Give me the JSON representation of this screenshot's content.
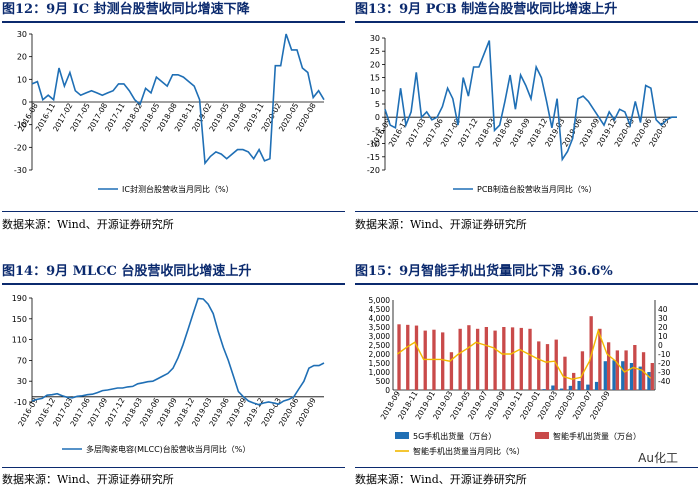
{
  "panels": [
    {
      "fig_title": "图12：9月 IC 封测台股营收同比增速下降",
      "source": "数据来源：Wind、开源证券研究所"
    },
    {
      "fig_title": "图13：9月 PCB 制造台股营收同比增速上升",
      "source": "数据来源：Wind、开源证券研究所"
    },
    {
      "fig_title": "图14：9月 MLCC 台股营收同比增速上升",
      "source": "数据来源：Wind、开源证券研究所"
    },
    {
      "fig_title": "图15：9月智能手机出货量同比下滑 36.6%",
      "source": "数据来源：Wind、开源证券研究所"
    }
  ],
  "watermark": "Au化工",
  "chart_data": [
    {
      "type": "line",
      "color": "#1f6fb5",
      "ylim": [
        -30,
        30
      ],
      "yticks": [
        -30,
        -20,
        -10,
        0,
        10,
        20,
        30
      ],
      "xticks": [
        "2016-08",
        "2016-11",
        "2017-02",
        "2017-05",
        "2017-08",
        "2017-11",
        "2018-02",
        "2018-05",
        "2018-08",
        "2018-11",
        "2019-02",
        "2019-05",
        "2019-08",
        "2019-11",
        "2020-02",
        "2020-05",
        "2020-08"
      ],
      "series": [
        {
          "name": "IC封测台股营收当月同比（%）",
          "values": [
            8,
            9,
            1,
            3,
            1,
            15,
            7,
            13,
            5,
            3,
            4,
            5,
            4,
            3,
            4,
            5,
            8,
            8,
            5,
            1,
            -1,
            6,
            4,
            11,
            9,
            7,
            12,
            12,
            11,
            9,
            7,
            1,
            -27,
            -24,
            -22,
            -23,
            -25,
            -23,
            -21,
            -21,
            -22,
            -25,
            -21,
            -26,
            -25,
            16,
            16,
            30,
            23,
            23,
            15,
            13,
            2,
            5,
            1
          ]
        }
      ]
    },
    {
      "type": "line",
      "color": "#1f6fb5",
      "ylim": [
        -20,
        30
      ],
      "yticks": [
        -20,
        -15,
        -10,
        -5,
        0,
        5,
        10,
        15,
        20,
        25,
        30
      ],
      "xticks": [
        "2016-09",
        "2016-12",
        "2017-03",
        "2017-06",
        "2017-09",
        "2017-12",
        "2018-03",
        "2018-06",
        "2018-09",
        "2018-12",
        "2019-03",
        "2019-06",
        "2019-09",
        "2019-12",
        "2020-03",
        "2020-06",
        "2020-09"
      ],
      "series": [
        {
          "name": "PCB制造台股营收当月同比（%）",
          "values": [
            3,
            -3,
            -4,
            11,
            -3,
            2,
            17,
            0,
            2,
            -1,
            0,
            4,
            11,
            7,
            -3,
            15,
            8,
            19,
            19,
            24,
            29,
            -5,
            -3,
            6,
            16,
            3,
            16,
            12,
            7,
            19,
            15,
            6,
            -4,
            7,
            -16,
            -13,
            -8,
            7,
            8,
            6,
            3,
            0,
            -3,
            2,
            -1,
            3,
            2,
            -3,
            6,
            -2,
            12,
            11,
            -1,
            -3,
            -1,
            0,
            0
          ]
        }
      ]
    },
    {
      "type": "line",
      "color": "#1f6fb5",
      "ylim": [
        -10,
        190
      ],
      "yticks": [
        -10,
        30,
        70,
        110,
        150,
        190
      ],
      "xticks": [
        "2016-09",
        "2016-12",
        "2017-03",
        "2017-06",
        "2017-09",
        "2017-12",
        "2018-03",
        "2018-06",
        "2018-09",
        "2018-12",
        "2019-03",
        "2019-06",
        "2019-09",
        "2019-12",
        "2020-03",
        "2020-06",
        "2020-09"
      ],
      "series": [
        {
          "name": "多层陶瓷电容(MLCC)台股营收当月同比（%）",
          "values": [
            -8,
            -5,
            -3,
            3,
            4,
            6,
            2,
            -1,
            -2,
            1,
            2,
            4,
            5,
            8,
            12,
            13,
            15,
            17,
            17,
            19,
            20,
            25,
            27,
            29,
            30,
            35,
            40,
            45,
            55,
            75,
            100,
            130,
            160,
            189,
            188,
            178,
            160,
            125,
            95,
            70,
            40,
            10,
            0,
            -8,
            -12,
            -15,
            -12,
            -10,
            -12,
            -14,
            -8,
            -5,
            0,
            15,
            30,
            55,
            60,
            60,
            65
          ]
        }
      ]
    },
    {
      "type": "bar",
      "ylim": [
        0,
        5000
      ],
      "yticks": [
        0,
        500,
        1000,
        1500,
        2000,
        2500,
        3000,
        3500,
        4000,
        4500,
        5000
      ],
      "y2lim": [
        -50,
        50
      ],
      "y2ticks": [
        -40,
        -30,
        -20,
        -10,
        0,
        10,
        20,
        30,
        40
      ],
      "xticks": [
        "2018-09",
        "2018-11",
        "2019-01",
        "2019-03",
        "2019-05",
        "2019-07",
        "2019-09",
        "2019-11",
        "2020-01",
        "2020-03",
        "2020-05",
        "2020-07",
        "2020-09"
      ],
      "series": [
        {
          "name": "5G手机出货量（万台）",
          "color": "#1f6fb5",
          "values": [
            0,
            0,
            0,
            0,
            0,
            0,
            0,
            0,
            0,
            0,
            0,
            0,
            0,
            0,
            0,
            0,
            0,
            50,
            250,
            80,
            230,
            500,
            300,
            450,
            1600,
            1650,
            1600,
            1500,
            1300,
            1000
          ]
        },
        {
          "name": "智能手机出货量（万台）",
          "color": "#c94a4a",
          "values": [
            3650,
            3620,
            3580,
            3300,
            3350,
            3200,
            2100,
            3400,
            3600,
            3400,
            3500,
            3300,
            3500,
            3480,
            3450,
            3400,
            2700,
            2550,
            2800,
            1850,
            950,
            2150,
            4100,
            3400,
            2650,
            2200,
            2200,
            2500,
            2100,
            1500
          ]
        },
        {
          "name": "智能手机出货量当月同比（%）",
          "color": "#f2b800",
          "type": "line",
          "axis": "y2",
          "values": [
            -10,
            -3,
            3,
            -16,
            -16,
            -16,
            -18,
            -10,
            -4,
            3,
            0,
            -3,
            -10,
            -10,
            -5,
            -10,
            -15,
            -19,
            -18,
            -35,
            -38,
            -36,
            -18,
            16,
            -10,
            -18,
            -30,
            -25,
            -28,
            -37
          ]
        }
      ]
    }
  ]
}
